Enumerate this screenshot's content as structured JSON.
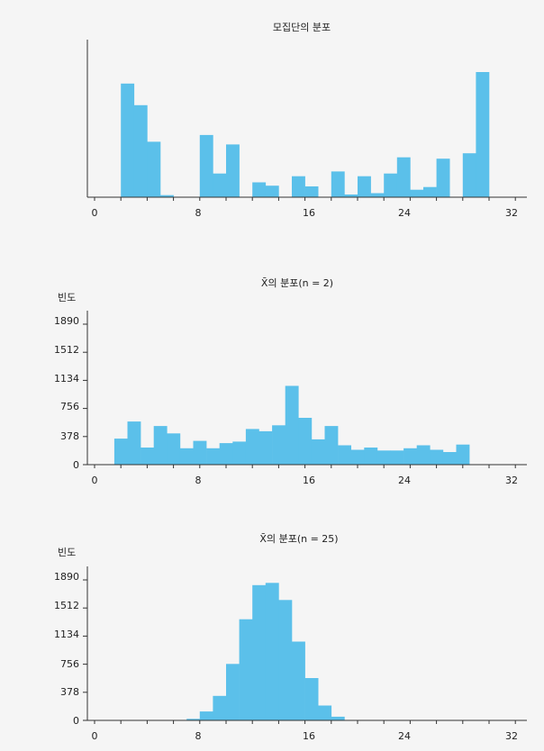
{
  "chart_data": [
    {
      "type": "bar",
      "title": "모집단의 분포",
      "ylabel": "",
      "xlim": [
        0,
        32
      ],
      "xticks": [
        "0",
        "8",
        "16",
        "24",
        "32"
      ],
      "yticks": [],
      "bin_width": 1,
      "bins_x": [
        2,
        3,
        4,
        5,
        6,
        7,
        8,
        9,
        10,
        11,
        12,
        13,
        14,
        15,
        16,
        17,
        18,
        19,
        20,
        21,
        22,
        23,
        24,
        25,
        26,
        27,
        28,
        29
      ],
      "values": [
        1680,
        1360,
        820,
        30,
        0,
        0,
        920,
        350,
        780,
        0,
        220,
        170,
        0,
        310,
        160,
        0,
        380,
        40,
        310,
        60,
        350,
        590,
        110,
        150,
        570,
        0,
        650,
        1850
      ]
    },
    {
      "type": "bar",
      "title": "X̄의 분포(n = 2)",
      "ylabel": "빈도",
      "xlim": [
        0,
        32
      ],
      "xticks": [
        "0",
        "8",
        "16",
        "24",
        "32"
      ],
      "yticks": [
        "0",
        "378",
        "756",
        "1134",
        "1512",
        "1890"
      ],
      "ylim": [
        0,
        1890
      ],
      "bin_width": 1,
      "bins_x": [
        1.5,
        2.5,
        3.5,
        4.5,
        5.5,
        6.5,
        7.5,
        8.5,
        9.5,
        10.5,
        11.5,
        12.5,
        13.5,
        14.5,
        15.5,
        16.5,
        17.5,
        18.5,
        19.5,
        20.5,
        21.5,
        22.5,
        23.5,
        24.5,
        25.5,
        26.5,
        27.5
      ],
      "values": [
        350,
        580,
        230,
        520,
        420,
        220,
        320,
        220,
        290,
        310,
        480,
        450,
        530,
        1060,
        630,
        340,
        520,
        260,
        200,
        230,
        190,
        190,
        220,
        260,
        200,
        170,
        270
      ]
    },
    {
      "type": "bar",
      "title": "X̄의 분포(n = 25)",
      "ylabel": "빈도",
      "xlim": [
        0,
        32
      ],
      "xticks": [
        "0",
        "8",
        "16",
        "24",
        "32"
      ],
      "yticks": [
        "0",
        "378",
        "756",
        "1134",
        "1512",
        "1890"
      ],
      "ylim": [
        0,
        1890
      ],
      "bin_width": 1,
      "bins_x": [
        7,
        8,
        9,
        10,
        11,
        12,
        13,
        14,
        15,
        16,
        17,
        18
      ],
      "values": [
        20,
        120,
        330,
        760,
        1360,
        1820,
        1850,
        1620,
        1060,
        570,
        200,
        50
      ]
    }
  ]
}
